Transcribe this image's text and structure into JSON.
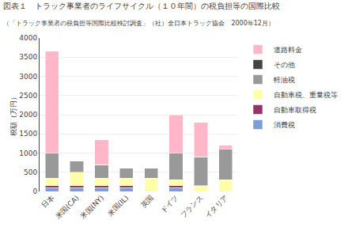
{
  "chart_data": {
    "type": "bar",
    "stacked": true,
    "title": "図表１　トラック事業者のライフサイクル（１０年間）の税負担等の国際比較",
    "subtitle": "（「トラック事業者の税負担等国際比較検討調査」（社）全日本トラック協会　2000年12月）",
    "categories": [
      "日本",
      "米国(CA)",
      "米国(NY)",
      "米国(IL)",
      "英国",
      "ドイツ",
      "フランス",
      "イタリア"
    ],
    "series": [
      {
        "name": "消費税",
        "color": "#7B9FD4",
        "values": [
          100,
          100,
          100,
          100,
          0,
          100,
          0,
          0
        ]
      },
      {
        "name": "自動車取得税",
        "color": "#993366",
        "values": [
          50,
          50,
          50,
          50,
          0,
          50,
          0,
          0
        ]
      },
      {
        "name": "自動車税、重量税等",
        "color": "#FFFFAA",
        "values": [
          200,
          350,
          200,
          200,
          350,
          150,
          150,
          300
        ]
      },
      {
        "name": "軽油税",
        "color": "#999999",
        "values": [
          650,
          300,
          350,
          250,
          250,
          700,
          750,
          800
        ]
      },
      {
        "name": "その他",
        "color": "#444444",
        "values": [
          0,
          0,
          0,
          0,
          0,
          0,
          0,
          0
        ]
      },
      {
        "name": "道路料金",
        "color": "#FFB6C8",
        "values": [
          2650,
          0,
          650,
          0,
          0,
          1000,
          900,
          100
        ]
      }
    ],
    "ylabel": "税額（万円）",
    "ylim": [
      0,
      4000
    ],
    "yticks": [
      0,
      500,
      1000,
      1500,
      2000,
      2500,
      3000,
      3500,
      4000
    ],
    "grid": true,
    "legend": "upper right"
  }
}
